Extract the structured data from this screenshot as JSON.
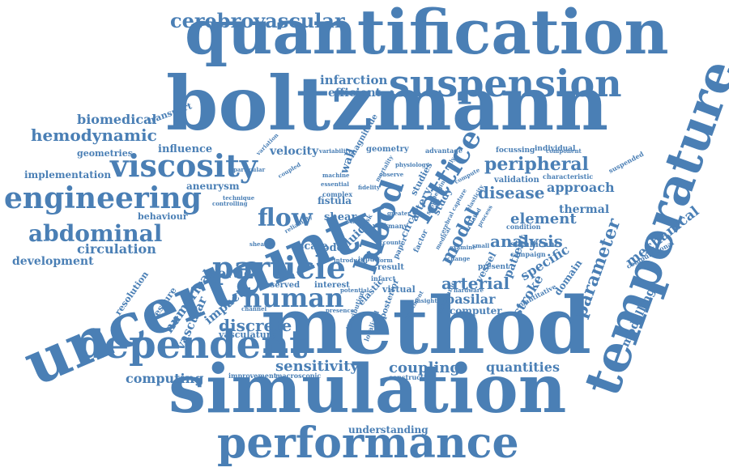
{
  "word_color": "#4a7fb5",
  "background_color": "#ffffff",
  "words": [
    "quantification",
    "boltzmann",
    "uncertainty",
    "method",
    "simulation",
    "temperature",
    "performance",
    "suspension",
    "cerebrovascular",
    "viscosity",
    "engineering",
    "dependent",
    "particle",
    "human",
    "flow",
    "blood",
    "lattice",
    "abdominal",
    "hemodynamic",
    "biomedical",
    "peripheral",
    "disease",
    "approach",
    "element",
    "analysis",
    "arterial",
    "model",
    "parameter",
    "mechanical",
    "basilar",
    "stroke",
    "sensitivity",
    "coupling",
    "quantities",
    "computing",
    "discrete",
    "aortic",
    "numerical",
    "vascular",
    "impact",
    "circulation",
    "development",
    "infarction",
    "efficient",
    "transport",
    "geometries",
    "influence",
    "velocity",
    "implementation",
    "aneurysm",
    "behaviour",
    "modelling",
    "thermal",
    "specific",
    "patient",
    "vessel",
    "artery",
    "circle",
    "study",
    "studies",
    "shear",
    "fistula",
    "scale",
    "code",
    "fluid",
    "computer",
    "understanding",
    "vasculature",
    "resolution",
    "pressure",
    "posterior",
    "elastic",
    "domain",
    "validation",
    "focussing",
    "individual",
    "suspended",
    "magnitude",
    "geometry",
    "observed",
    "interest",
    "present",
    "significant",
    "computational",
    "quantitative",
    "component",
    "characteristic",
    "advantage",
    "condition",
    "campaign",
    "result",
    "virtual",
    "infarct",
    "construction",
    "improvement",
    "macroscopic",
    "presence",
    "mechanic",
    "insight",
    "hardware",
    "variability",
    "variation",
    "particular",
    "coupled",
    "machine",
    "essential",
    "mortality",
    "complex",
    "fidelity",
    "wall",
    "controlling",
    "technique",
    "sheared",
    "input",
    "form",
    "risk",
    "many",
    "paper",
    "factor",
    "reliability",
    "introduce",
    "potential",
    "channel",
    "distribution",
    "localized",
    "treatment",
    "stent",
    "change",
    "examine",
    "account",
    "greater",
    "observe",
    "capture",
    "compute",
    "fully",
    "work",
    "state",
    "related",
    "physiology",
    "medical",
    "cerebral",
    "emerging",
    "elasticity",
    "process",
    "small"
  ]
}
